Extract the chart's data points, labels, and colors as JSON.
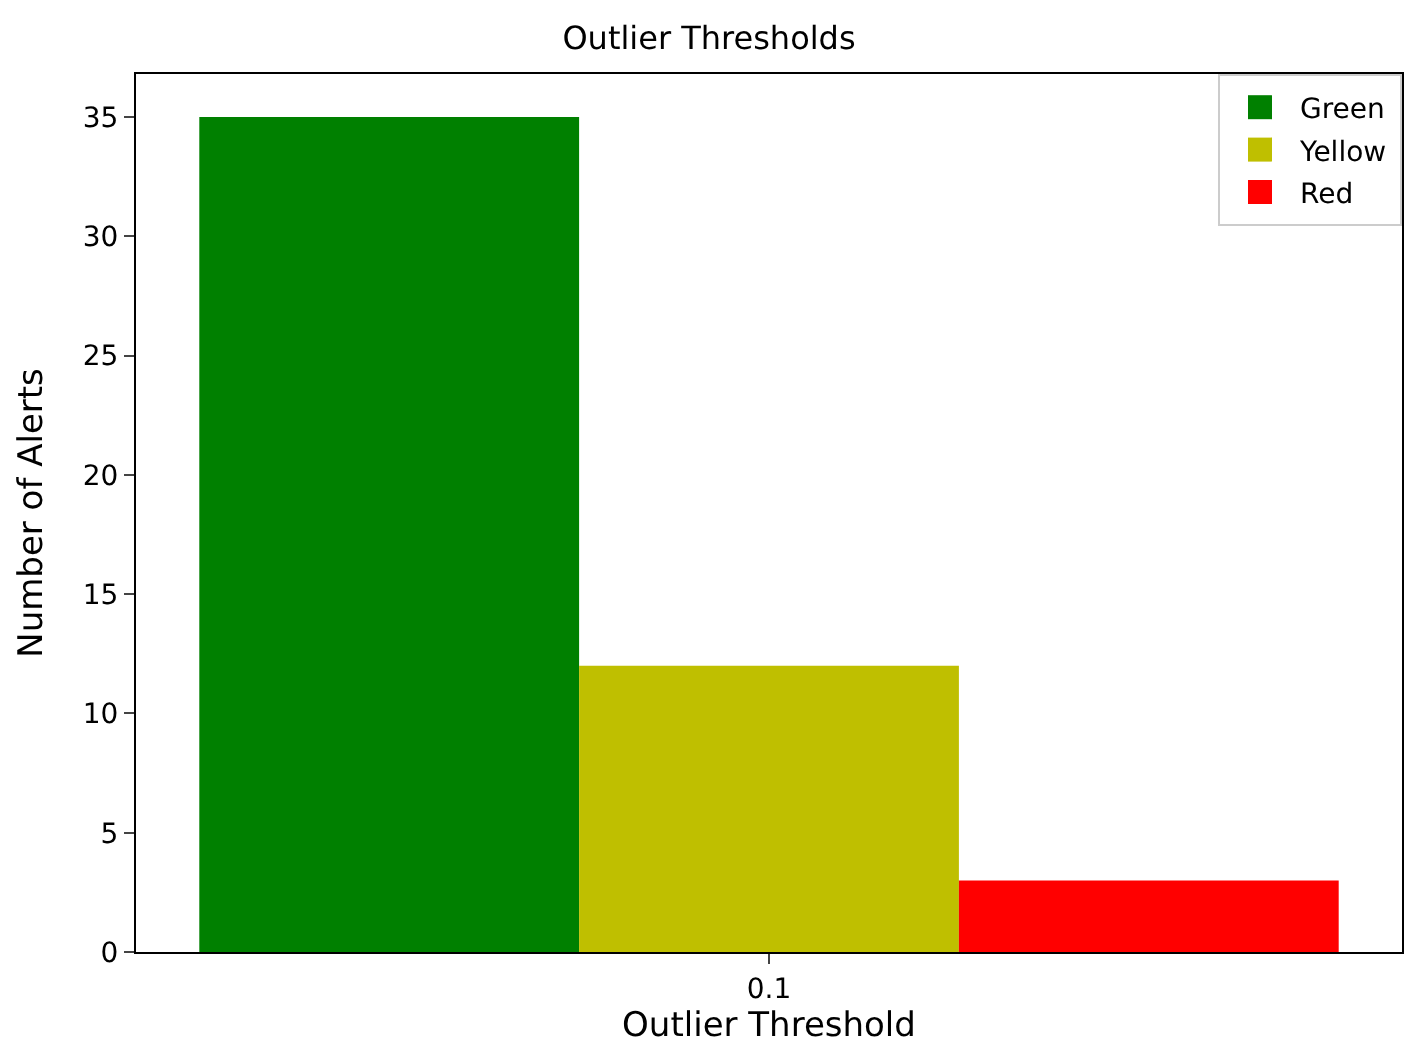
{
  "chart_data": {
    "type": "bar",
    "title": "Outlier Thresholds",
    "xlabel": "Outlier Threshold",
    "ylabel": "Number of Alerts",
    "categories": [
      "0.1"
    ],
    "series": [
      {
        "name": "Green",
        "color": "#008000",
        "values": [
          35
        ]
      },
      {
        "name": "Yellow",
        "color": "#bfbf00",
        "values": [
          12
        ]
      },
      {
        "name": "Red",
        "color": "#ff0000",
        "values": [
          3
        ]
      }
    ],
    "ylim": [
      0,
      36.8
    ],
    "yticks": [
      0,
      5,
      10,
      15,
      20,
      25,
      30,
      35
    ],
    "legend": "top right"
  }
}
